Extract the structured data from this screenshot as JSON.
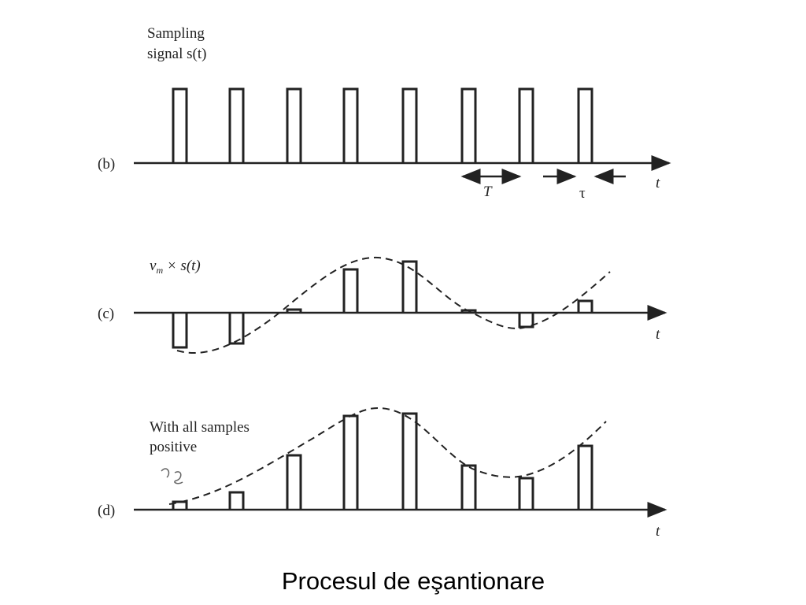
{
  "panel_b": {
    "label": "(b)",
    "title_line1": "Sampling",
    "title_line2": "signal s(t)",
    "period": "T",
    "width": "τ",
    "axis": "t"
  },
  "panel_c": {
    "label": "(c)",
    "title_var": "v",
    "title_sub": "m",
    "title_rest": " × s(t)",
    "axis": "t"
  },
  "panel_d": {
    "label": "(d)",
    "title_line1": "With all samples",
    "title_line2": "positive",
    "axis": "t"
  },
  "caption": "Procesul de eşantionare"
}
